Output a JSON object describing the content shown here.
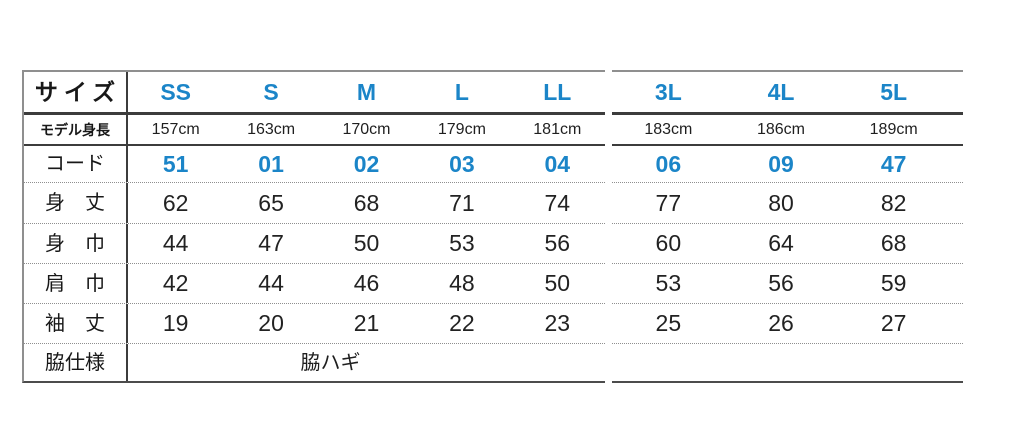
{
  "chart_data": {
    "type": "table",
    "corner_label": "サイズ",
    "columns": [
      "SS",
      "S",
      "M",
      "L",
      "LL",
      "3L",
      "4L",
      "5L"
    ],
    "split_after_column": "LL",
    "rows": [
      {
        "label": "モデル身長",
        "values": [
          "157cm",
          "163cm",
          "170cm",
          "179cm",
          "181cm",
          "183cm",
          "186cm",
          "189cm"
        ]
      },
      {
        "label": "コード",
        "values": [
          "51",
          "01",
          "02",
          "03",
          "04",
          "06",
          "09",
          "47"
        ]
      },
      {
        "label": "身　丈",
        "values": [
          "62",
          "65",
          "68",
          "71",
          "74",
          "77",
          "80",
          "82"
        ]
      },
      {
        "label": "身　巾",
        "values": [
          "44",
          "47",
          "50",
          "53",
          "56",
          "60",
          "64",
          "68"
        ]
      },
      {
        "label": "肩　巾",
        "values": [
          "42",
          "44",
          "46",
          "48",
          "50",
          "53",
          "56",
          "59"
        ]
      },
      {
        "label": "袖　丈",
        "values": [
          "19",
          "20",
          "21",
          "22",
          "23",
          "25",
          "26",
          "27"
        ]
      },
      {
        "label": "脇仕様",
        "values": [
          "脇ハギ"
        ]
      }
    ],
    "layout": {
      "legend": "none",
      "grid": "horizontal-rules",
      "accent_color": "#1b85c8",
      "text_color": "#222222",
      "rule_dark_color": "#3c3c3c",
      "rule_light_color": "#8f8f8f"
    }
  }
}
